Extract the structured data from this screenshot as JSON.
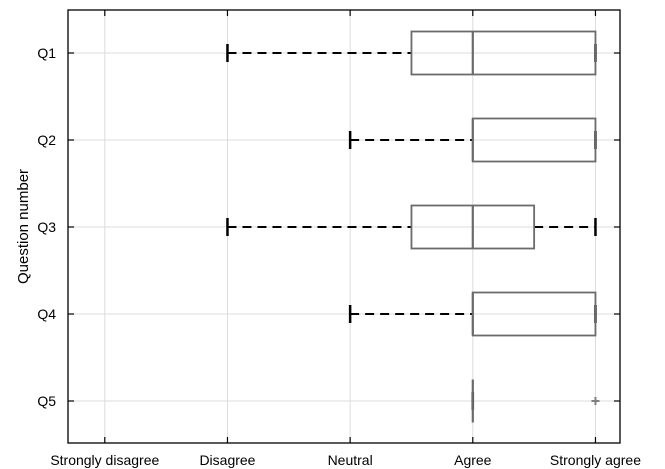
{
  "chart_data": {
    "type": "boxplot",
    "orientation": "horizontal",
    "ylabel": "Question number",
    "xlabel": "",
    "x_categories": [
      "Strongly disagree",
      "Disagree",
      "Neutral",
      "Agree",
      "Strongly agree"
    ],
    "xlim": [
      0.7,
      5.2
    ],
    "grid": true,
    "colors": {
      "box": "#6b6b6b",
      "whisker": "#000000",
      "grid": "#dcdcdc",
      "outlier": "#808080"
    },
    "series": [
      {
        "name": "Q1",
        "whisker_low": 2,
        "q1": 3.5,
        "median": 4,
        "q3": 5,
        "whisker_high": 5,
        "outliers": []
      },
      {
        "name": "Q2",
        "whisker_low": 3,
        "q1": 4,
        "median": 4,
        "q3": 5,
        "whisker_high": 5,
        "outliers": []
      },
      {
        "name": "Q3",
        "whisker_low": 2,
        "q1": 3.5,
        "median": 4,
        "q3": 4.5,
        "whisker_high": 5,
        "outliers": []
      },
      {
        "name": "Q4",
        "whisker_low": 3,
        "q1": 4,
        "median": 4,
        "q3": 5,
        "whisker_high": 5,
        "outliers": []
      },
      {
        "name": "Q5",
        "whisker_low": 4,
        "q1": 4,
        "median": 4,
        "q3": 4,
        "whisker_high": 4,
        "outliers": [
          5
        ]
      }
    ]
  }
}
